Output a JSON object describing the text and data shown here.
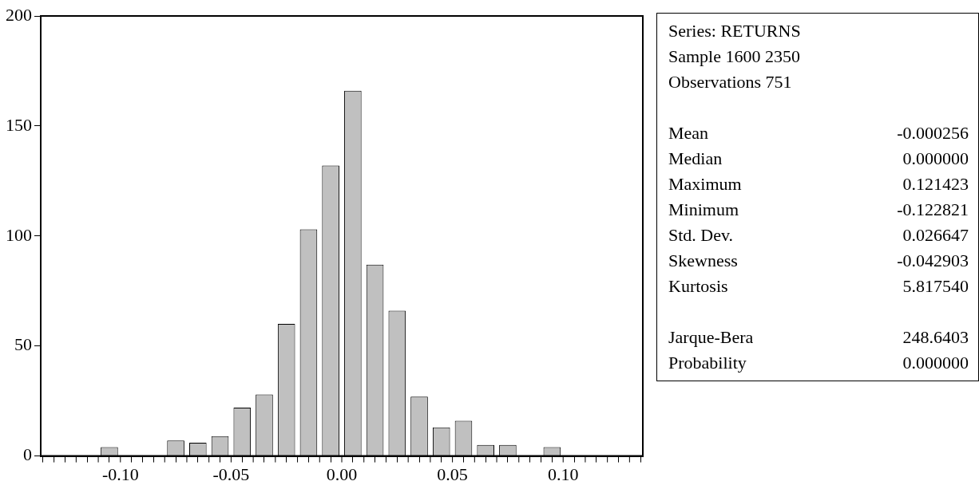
{
  "chart_data": {
    "type": "histogram",
    "bins": [
      -0.11,
      -0.1,
      -0.09,
      -0.08,
      -0.07,
      -0.06,
      -0.05,
      -0.04,
      -0.03,
      -0.02,
      -0.01,
      0,
      0.01,
      0.02,
      0.03,
      0.04,
      0.05,
      0.06,
      0.07,
      0.08,
      0.09,
      0.1
    ],
    "values": [
      4,
      0,
      0,
      7,
      6,
      9,
      22,
      28,
      60,
      103,
      132,
      166,
      87,
      66,
      27,
      13,
      16,
      5,
      5,
      0,
      4
    ],
    "color": "#c0c0c0",
    "xlim": [
      -0.136,
      0.136
    ],
    "xticks": [
      {
        "value": -0.13,
        "label": null
      },
      {
        "value": -0.12,
        "label": null
      },
      {
        "value": -0.11,
        "label": null
      },
      {
        "value": -0.1,
        "label": "-0.10"
      },
      {
        "value": -0.09,
        "label": null
      },
      {
        "value": -0.08,
        "label": null
      },
      {
        "value": -0.07,
        "label": null
      },
      {
        "value": -0.06,
        "label": null
      },
      {
        "value": -0.05,
        "label": "-0.05"
      },
      {
        "value": -0.04,
        "label": null
      },
      {
        "value": -0.03,
        "label": null
      },
      {
        "value": -0.02,
        "label": null
      },
      {
        "value": -0.01,
        "label": null
      },
      {
        "value": 0,
        "label": "0.00"
      },
      {
        "value": 0.01,
        "label": null
      },
      {
        "value": 0.02,
        "label": null
      },
      {
        "value": 0.03,
        "label": null
      },
      {
        "value": 0.04,
        "label": null
      },
      {
        "value": 0.05,
        "label": "0.05"
      },
      {
        "value": 0.06,
        "label": null
      },
      {
        "value": 0.07,
        "label": null
      },
      {
        "value": 0.08,
        "label": null
      },
      {
        "value": 0.09,
        "label": null
      },
      {
        "value": 0.1,
        "label": "0.10"
      },
      {
        "value": 0.11,
        "label": null
      },
      {
        "value": 0.12,
        "label": null
      },
      {
        "value": 0.13,
        "label": null
      }
    ],
    "ylim": [
      0,
      200
    ],
    "yticks": [
      0,
      50,
      100,
      150,
      200
    ],
    "grid": false,
    "legend": false,
    "annotations": [
      "Series: RETURNS",
      "Sample 1600 2350",
      "Observations 751",
      "Mean",
      "-0.000256",
      "Median",
      "0.000000",
      "Maximum",
      "0.121423",
      "Minimum",
      "-0.122821",
      "Std. Dev.",
      "0.026647",
      "Skewness",
      "-0.042903",
      "Kurtosis",
      "5.817540",
      "Jarque-Bera",
      "248.6403",
      "Probability",
      "0.000000"
    ]
  }
}
